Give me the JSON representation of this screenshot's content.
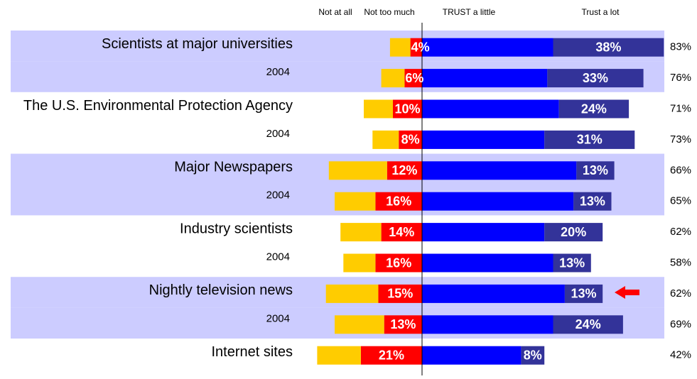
{
  "chart_data": {
    "type": "diverging_bar",
    "categories": [
      "Scientists at major universities",
      "2004",
      "The U.S. Environmental Protection Agency",
      "2004",
      "Major Newspapers",
      "2004",
      "Industry scientists",
      "2004",
      "Nightly television news",
      "2004",
      "Internet sites"
    ],
    "series": [
      {
        "name": "Not at all",
        "color": "#ff0000",
        "side": "left",
        "values": [
          4,
          6,
          10,
          8,
          12,
          16,
          14,
          16,
          15,
          13,
          21
        ],
        "value_labels": [
          "4%",
          "6%",
          "10%",
          "8%",
          "12%",
          "16%",
          "14%",
          "16%",
          "15%",
          "13%",
          "21%"
        ]
      },
      {
        "name": "Not too much",
        "color": "#ffcc00",
        "side": "left",
        "values": [
          7,
          8,
          10,
          9,
          20,
          14,
          14,
          11,
          18,
          17,
          15
        ]
      },
      {
        "name": "TRUST a little",
        "color": "#0000ff",
        "side": "right",
        "values": [
          45,
          43,
          47,
          42,
          53,
          52,
          42,
          45,
          49,
          45,
          34
        ]
      },
      {
        "name": "Trust a lot",
        "color": "#333399",
        "side": "right",
        "values": [
          38,
          33,
          24,
          31,
          13,
          13,
          20,
          13,
          13,
          24,
          8
        ],
        "value_labels": [
          "38%",
          "33%",
          "24%",
          "31%",
          "13%",
          "13%",
          "20%",
          "13%",
          "13%",
          "24%",
          "8%"
        ]
      }
    ],
    "totals": {
      "values": [
        83,
        76,
        71,
        73,
        66,
        65,
        62,
        58,
        62,
        69,
        42
      ],
      "value_labels": [
        "83%",
        "76%",
        "71%",
        "73%",
        "66%",
        "65%",
        "62%",
        "58%",
        "62%",
        "69%",
        "42%"
      ]
    },
    "band_color": "#ccccff"
  }
}
